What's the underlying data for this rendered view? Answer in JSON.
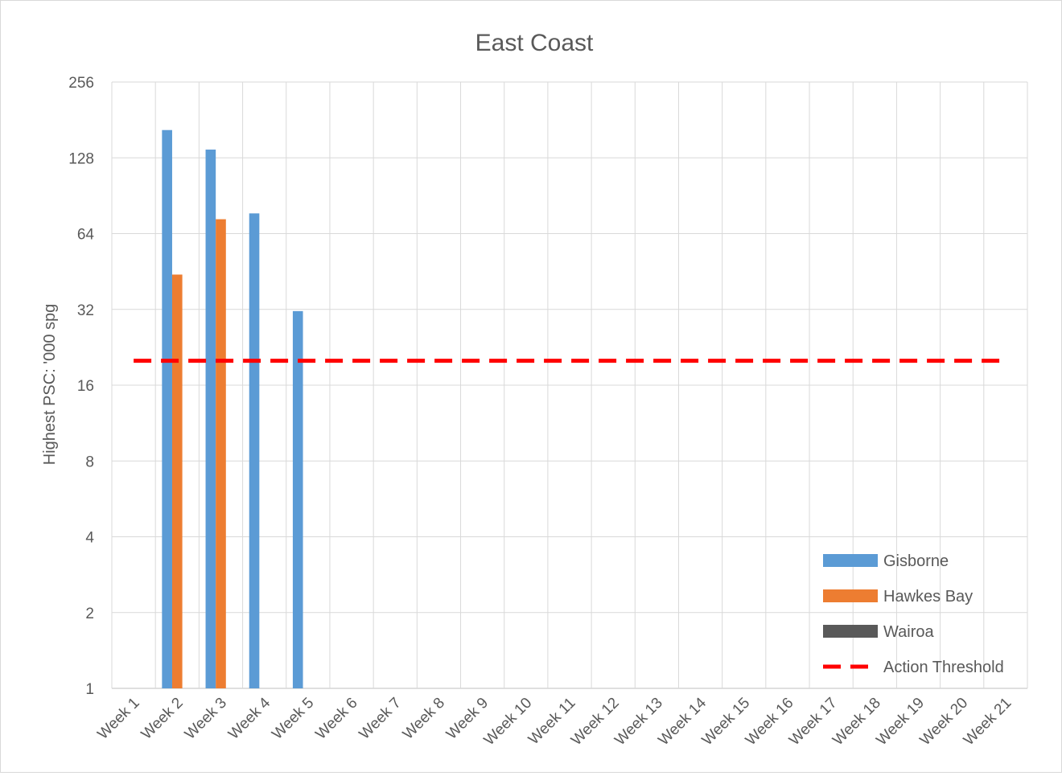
{
  "chart_data": {
    "type": "bar",
    "title": "East Coast",
    "xlabel": "",
    "ylabel": "Highest PSC: '000 spg",
    "y_scale": "log2",
    "ylim": [
      1,
      256
    ],
    "y_ticks": [
      "1",
      "2",
      "4",
      "8",
      "16",
      "32",
      "64",
      "128",
      "256"
    ],
    "grid": true,
    "legend_position": "bottom-right",
    "categories": [
      "Week 1",
      "Week 2",
      "Week 3",
      "Week 4",
      "Week 5",
      "Week 6",
      "Week 7",
      "Week 8",
      "Week 9",
      "Week 10",
      "Week 11",
      "Week 12",
      "Week 13",
      "Week 14",
      "Week 15",
      "Week 16",
      "Week 17",
      "Week 18",
      "Week 19",
      "Week 20",
      "Week 21"
    ],
    "series": [
      {
        "name": "Gisborne",
        "color": "#5b9bd5",
        "values": [
          null,
          165,
          138,
          77,
          31.5,
          null,
          null,
          null,
          null,
          null,
          null,
          null,
          null,
          null,
          null,
          null,
          null,
          null,
          null,
          null,
          null
        ]
      },
      {
        "name": "Hawkes Bay",
        "color": "#ed7d31",
        "values": [
          null,
          44,
          73,
          null,
          null,
          null,
          null,
          null,
          null,
          null,
          null,
          null,
          null,
          null,
          null,
          null,
          null,
          null,
          null,
          null,
          null
        ]
      },
      {
        "name": "Wairoa",
        "color": "#595959",
        "values": [
          null,
          null,
          null,
          null,
          null,
          null,
          null,
          null,
          null,
          null,
          null,
          null,
          null,
          null,
          null,
          null,
          null,
          null,
          null,
          null,
          null
        ]
      }
    ],
    "threshold": {
      "name": "Action Threshold",
      "value": 20,
      "color": "#ff0000",
      "style": "dashed"
    }
  }
}
